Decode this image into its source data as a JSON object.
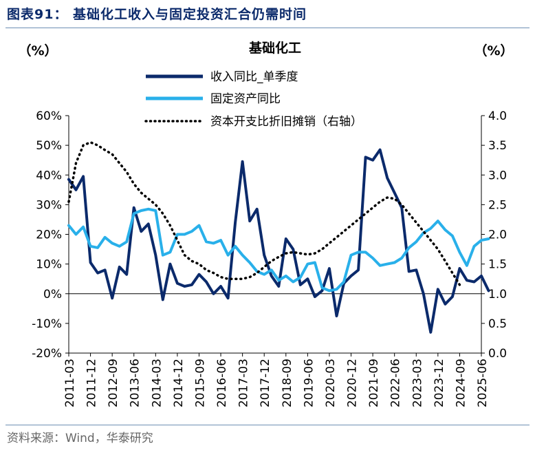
{
  "figure": {
    "title": "图表91：  基础化工收入与固定投资汇合仍需时间",
    "source": "资料来源：Wind，华泰研究"
  },
  "chart_data": {
    "type": "line",
    "title": "基础化工",
    "y_left_label": "（%）",
    "y_right_label": "（%）",
    "y_left": {
      "min": -20,
      "max": 60,
      "ticks": [
        "-20%",
        "-10%",
        "0%",
        "10%",
        "20%",
        "30%",
        "40%",
        "50%",
        "60%"
      ]
    },
    "y_right": {
      "min": 0,
      "max": 4,
      "ticks": [
        "0.0",
        "0.5",
        "1.0",
        "1.5",
        "2.0",
        "2.5",
        "3.0",
        "3.5",
        "4.0"
      ]
    },
    "x_start": "2011-03",
    "x_end": "2025-06",
    "x_tick_labels": [
      "2011-03",
      "2011-12",
      "2012-09",
      "2013-06",
      "2014-03",
      "2014-12",
      "2015-09",
      "2016-06",
      "2017-03",
      "2017-12",
      "2018-09",
      "2019-06",
      "2020-03",
      "2020-12",
      "2021-09",
      "2022-06",
      "2023-03",
      "2023-12",
      "2024-09",
      "2025-06"
    ],
    "legend_position": "top-center",
    "series": [
      {
        "name": "收入同比_单季度",
        "axis": "left",
        "color": "#0b2a6b",
        "style": "solid",
        "values": [
          38.5,
          35,
          39.5,
          10.5,
          7,
          8,
          -1.5,
          9,
          6.5,
          29,
          21,
          23.5,
          13,
          -2,
          10,
          3.5,
          2.5,
          3,
          6.5,
          4,
          0,
          2.5,
          -1.5,
          24,
          44.5,
          24.5,
          28.5,
          13,
          6,
          2.5,
          18.5,
          15,
          3,
          5,
          -1,
          1,
          8.5,
          -7.5,
          3.5,
          6,
          8,
          46,
          45,
          48.5,
          39,
          34,
          29,
          7.5,
          8,
          0,
          -13,
          1.5,
          -3.5,
          -1,
          8.5,
          4.5,
          4,
          6,
          1
        ]
      },
      {
        "name": "固定资产同比",
        "axis": "left",
        "color": "#29b0ea",
        "style": "solid",
        "values": [
          23,
          20,
          22.5,
          16,
          15.5,
          19,
          17,
          16,
          17.5,
          27,
          28,
          28.5,
          28,
          13,
          14,
          20,
          20,
          21,
          23,
          17.5,
          17,
          18,
          13,
          16,
          13,
          10.5,
          7.5,
          6.5,
          8,
          4.5,
          6,
          4,
          5.5,
          10,
          10.5,
          2,
          1,
          1.5,
          4,
          13,
          14,
          14,
          12,
          9.5,
          10,
          10.5,
          12,
          15.5,
          17.5,
          20.5,
          22,
          24.5,
          21.5,
          19.5,
          14,
          9.5,
          16,
          18,
          18.5
        ]
      },
      {
        "name": "资本开支比折旧摊销（右轴）",
        "axis": "right",
        "color": "#000000",
        "style": "dotted",
        "values": [
          2.55,
          3.2,
          3.5,
          3.55,
          3.5,
          3.42,
          3.35,
          3.2,
          3.05,
          2.85,
          2.7,
          2.6,
          2.5,
          2.35,
          2.15,
          1.9,
          1.65,
          1.55,
          1.5,
          1.4,
          1.35,
          1.28,
          1.25,
          1.25,
          1.25,
          1.28,
          1.35,
          1.45,
          1.55,
          1.62,
          1.68,
          1.7,
          1.68,
          1.66,
          1.68,
          1.75,
          1.85,
          1.95,
          2.05,
          2.15,
          2.25,
          2.35,
          2.45,
          2.55,
          2.62,
          2.6,
          2.5,
          2.35,
          2.2,
          2.05,
          1.9,
          1.75,
          1.55,
          1.35,
          1.15
        ]
      }
    ]
  }
}
